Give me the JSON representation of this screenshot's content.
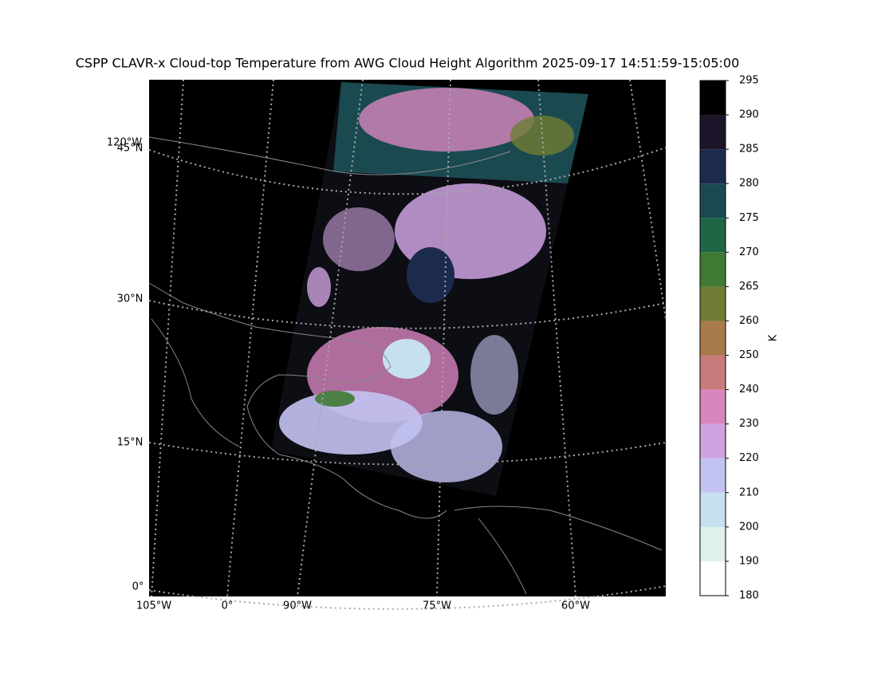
{
  "title": "CSPP CLAVR-x Cloud-top Temperature from AWG Cloud Height Algorithm 2025-09-17 14:51:59-15:05:00",
  "map": {
    "lat_labels": [
      "120°W",
      "45°N",
      "30°N",
      "15°N",
      "0°"
    ],
    "lon_labels": [
      "105°W",
      "0°",
      "90°W",
      "75°W",
      "60°W"
    ]
  },
  "colorbar": {
    "label": "K",
    "ticks": [
      180,
      190,
      200,
      210,
      220,
      230,
      240,
      250,
      260,
      265,
      270,
      275,
      280,
      285,
      290,
      295
    ],
    "colors": [
      "#ffffff",
      "#dff2ec",
      "#c6e0f0",
      "#c3c3f2",
      "#cfa3e0",
      "#d786be",
      "#c97a7a",
      "#a87a4c",
      "#6f7c33",
      "#3f7a35",
      "#1f6647",
      "#1a4a50",
      "#1c2a4c",
      "#1c1428",
      "#000000"
    ]
  }
}
